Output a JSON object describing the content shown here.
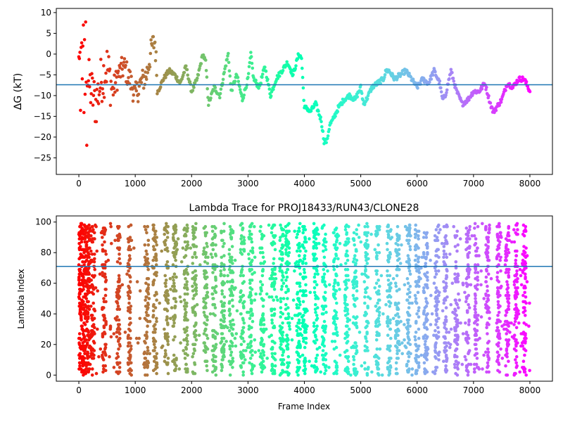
{
  "chart_data": [
    {
      "type": "scatter",
      "title": "",
      "xlabel": "",
      "ylabel": "ΔG (kT)",
      "xlim": [
        -400,
        8400
      ],
      "ylim": [
        -29,
        11
      ],
      "xticks": [
        0,
        1000,
        2000,
        3000,
        4000,
        5000,
        6000,
        7000,
        8000
      ],
      "yticks": [
        -25,
        -20,
        -15,
        -10,
        -5,
        0,
        5,
        10
      ],
      "hline": -7.4,
      "hline_color": "#1f77b4",
      "colormap": "rainbow (red at frame 0 → violet at frame 8000)",
      "grid": false,
      "trace_keypoints": {
        "x": [
          0,
          100,
          200,
          300,
          400,
          500,
          600,
          700,
          800,
          900,
          1000,
          1100,
          1200,
          1300,
          1350,
          1400,
          1500,
          1600,
          1700,
          1800,
          1900,
          2000,
          2100,
          2200,
          2250,
          2300,
          2400,
          2500,
          2600,
          2650,
          2700,
          2800,
          2900,
          3000,
          3050,
          3100,
          3200,
          3300,
          3400,
          3500,
          3600,
          3700,
          3800,
          3900,
          3950,
          4000,
          4050,
          4100,
          4200,
          4300,
          4350,
          4400,
          4450,
          4500,
          4600,
          4700,
          4800,
          4900,
          5000,
          5050,
          5100,
          5200,
          5300,
          5400,
          5450,
          5500,
          5600,
          5700,
          5800,
          5900,
          6000,
          6100,
          6200,
          6300,
          6400,
          6450,
          6500,
          6600,
          6700,
          6800,
          6900,
          7000,
          7100,
          7200,
          7300,
          7350,
          7400,
          7500,
          7600,
          7700,
          7800,
          7900,
          8000
        ],
        "y": [
          -5,
          -3,
          -8,
          -12,
          -6,
          -3,
          -9,
          -5,
          -3,
          -6,
          -10,
          -7,
          -5,
          2,
          3,
          -9,
          -6,
          -4,
          -5,
          -7,
          -3,
          -9,
          -6,
          0,
          -2,
          -12,
          -8,
          -10,
          -3,
          0,
          -9,
          -5,
          -11,
          -6,
          0,
          -6,
          -8,
          -3,
          -10,
          -6,
          -4,
          -2,
          -5,
          0,
          -1,
          -13,
          -13,
          -14,
          -12,
          -16,
          -21,
          -21,
          -17,
          -16,
          -13,
          -11,
          -10,
          -11,
          -8,
          -12,
          -11,
          -8,
          -7,
          -6,
          -4,
          -4,
          -6,
          -5,
          -4,
          -6,
          -8,
          -6,
          -7,
          -4,
          -7,
          -11,
          -10,
          -4,
          -9,
          -12,
          -11,
          -9,
          -9,
          -7,
          -12,
          -14,
          -13,
          -11,
          -7,
          -8,
          -6,
          -6,
          -9
        ]
      }
    },
    {
      "type": "scatter",
      "title": "Lambda Trace for PROJ18433/RUN43/CLONE28",
      "xlabel": "Frame Index",
      "ylabel": "Lambda Index",
      "xlim": [
        -400,
        8400
      ],
      "ylim": [
        -4,
        104
      ],
      "xticks": [
        0,
        1000,
        2000,
        3000,
        4000,
        5000,
        6000,
        7000,
        8000
      ],
      "yticks": [
        0,
        20,
        40,
        60,
        80,
        100
      ],
      "hline": 71,
      "hline_color": "#1f77b4",
      "colormap": "rainbow (red at frame 0 → violet at frame 8000)",
      "grid": false,
      "band_centers": [
        250,
        450,
        700,
        900,
        1200,
        1350,
        1550,
        1700,
        1900,
        2050,
        2250,
        2400,
        2550,
        2700,
        2900,
        3050,
        3250,
        3450,
        3600,
        3700,
        3900,
        4000,
        4200,
        4350,
        4550,
        4750,
        4900,
        5100,
        5300,
        5500,
        5650,
        5850,
        6000,
        6150,
        6350,
        6500,
        6700,
        6900,
        7050,
        7250,
        7450,
        7600,
        7750,
        7900
      ]
    }
  ]
}
